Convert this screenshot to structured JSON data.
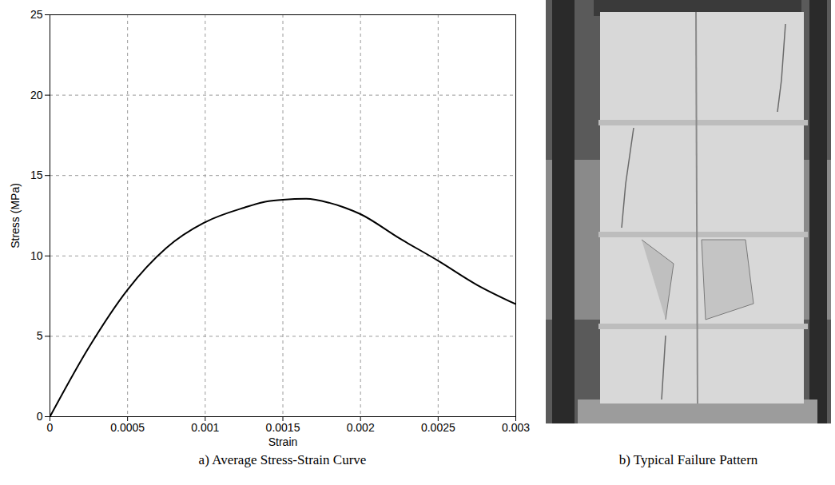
{
  "chart_data": {
    "type": "line",
    "caption": "a) Average Stress-Strain Curve",
    "x_label": "Strain",
    "y_label": "Stress (MPa)",
    "x": [
      0,
      0.00025,
      0.0005,
      0.00075,
      0.001,
      0.00125,
      0.0014,
      0.0015,
      0.00165,
      0.0018,
      0.0019,
      0.002,
      0.00225,
      0.0025,
      0.00275,
      0.003
    ],
    "values": [
      0,
      4.3,
      7.9,
      10.5,
      12.1,
      13.0,
      13.4,
      13.5,
      13.55,
      13.3,
      13.0,
      12.6,
      11.1,
      9.7,
      8.2,
      7.0
    ],
    "color": "#000000",
    "xlim": [
      0,
      0.003
    ],
    "xticks": [
      0,
      0.0005,
      0.001,
      0.0015,
      0.002,
      0.0025,
      0.003
    ],
    "ylim": [
      0,
      25
    ],
    "yticks": [
      0,
      5,
      10,
      15,
      20,
      25
    ],
    "grid": true
  },
  "photo": {
    "caption": "b) Typical Failure Pattern"
  }
}
